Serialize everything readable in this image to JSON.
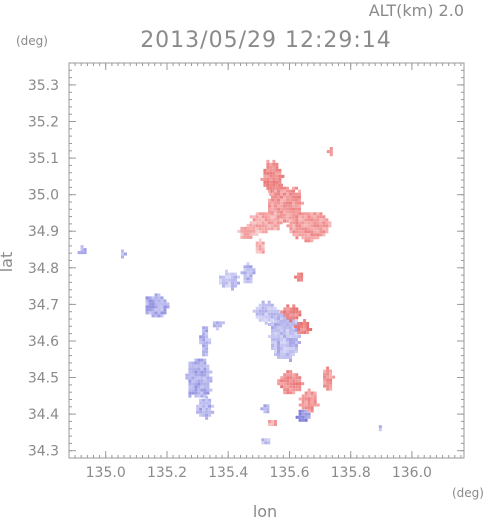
{
  "chart_data": {
    "type": "heatmap",
    "title": "2013/05/29 12:29:14",
    "subtitle": "ALT(km) 2.0",
    "xlabel": "lon",
    "ylabel": "lat",
    "x_unit": "(deg)",
    "y_unit": "(deg)",
    "xlim": [
      134.88,
      136.17
    ],
    "ylim": [
      34.28,
      35.36
    ],
    "x_ticks": [
      135.0,
      135.2,
      135.4,
      135.6,
      135.8,
      136.0
    ],
    "x_tick_labels": [
      "135.0",
      "135.2",
      "135.4",
      "135.6",
      "135.8",
      "136.0"
    ],
    "y_ticks": [
      34.3,
      34.4,
      34.5,
      34.6,
      34.7,
      34.8,
      34.9,
      35.0,
      35.1,
      35.2,
      35.3
    ],
    "y_tick_labels": [
      "34.3",
      "34.4",
      "34.5",
      "34.6",
      "34.7",
      "34.8",
      "34.9",
      "35.0",
      "35.1",
      "35.2",
      "35.3"
    ],
    "colors": {
      "positive": "#f4a3a3",
      "positive_strong": "#e87070",
      "negative": "#b8b8ee",
      "negative_strong": "#7878d8",
      "axis": "#9a9a9a",
      "text": "#8a8a8a"
    },
    "regions": [
      {
        "sign": "positive",
        "strength": 0.7,
        "lon": 135.54,
        "lat": 35.05,
        "rlon": 0.035,
        "rlat": 0.045
      },
      {
        "sign": "positive",
        "strength": 0.6,
        "lon": 135.58,
        "lat": 34.98,
        "rlon": 0.06,
        "rlat": 0.05
      },
      {
        "sign": "positive",
        "strength": 0.55,
        "lon": 135.66,
        "lat": 34.92,
        "rlon": 0.07,
        "rlat": 0.04
      },
      {
        "sign": "positive",
        "strength": 0.45,
        "lon": 135.52,
        "lat": 34.93,
        "rlon": 0.05,
        "rlat": 0.03
      },
      {
        "sign": "positive",
        "strength": 0.35,
        "lon": 135.46,
        "lat": 34.9,
        "rlon": 0.03,
        "rlat": 0.02
      },
      {
        "sign": "positive",
        "strength": 0.4,
        "lon": 135.5,
        "lat": 34.86,
        "rlon": 0.02,
        "rlat": 0.02
      },
      {
        "sign": "positive",
        "strength": 0.5,
        "lon": 135.73,
        "lat": 35.12,
        "rlon": 0.008,
        "rlat": 0.01
      },
      {
        "sign": "negative",
        "strength": 0.35,
        "lon": 135.4,
        "lat": 34.77,
        "rlon": 0.03,
        "rlat": 0.025
      },
      {
        "sign": "negative",
        "strength": 0.45,
        "lon": 135.46,
        "lat": 34.79,
        "rlon": 0.02,
        "rlat": 0.025
      },
      {
        "sign": "negative",
        "strength": 0.55,
        "lon": 135.16,
        "lat": 34.7,
        "rlon": 0.04,
        "rlat": 0.03
      },
      {
        "sign": "negative",
        "strength": 0.5,
        "lon": 135.32,
        "lat": 34.6,
        "rlon": 0.015,
        "rlat": 0.04
      },
      {
        "sign": "negative",
        "strength": 0.55,
        "lon": 135.3,
        "lat": 34.5,
        "rlon": 0.04,
        "rlat": 0.06
      },
      {
        "sign": "negative",
        "strength": 0.5,
        "lon": 135.32,
        "lat": 34.42,
        "rlon": 0.025,
        "rlat": 0.03
      },
      {
        "sign": "negative",
        "strength": 0.4,
        "lon": 135.58,
        "lat": 34.62,
        "rlon": 0.05,
        "rlat": 0.07
      },
      {
        "sign": "negative",
        "strength": 0.35,
        "lon": 135.52,
        "lat": 34.68,
        "rlon": 0.04,
        "rlat": 0.03
      },
      {
        "sign": "negative",
        "strength": 0.4,
        "lon": 135.36,
        "lat": 34.65,
        "rlon": 0.02,
        "rlat": 0.012
      },
      {
        "sign": "negative",
        "strength": 0.5,
        "lon": 134.92,
        "lat": 34.85,
        "rlon": 0.012,
        "rlat": 0.012
      },
      {
        "sign": "negative",
        "strength": 0.45,
        "lon": 135.05,
        "lat": 34.84,
        "rlon": 0.01,
        "rlat": 0.01
      },
      {
        "sign": "negative",
        "strength": 0.4,
        "lon": 135.89,
        "lat": 34.37,
        "rlon": 0.008,
        "rlat": 0.008
      },
      {
        "sign": "negative",
        "strength": 0.4,
        "lon": 135.52,
        "lat": 34.33,
        "rlon": 0.012,
        "rlat": 0.012
      },
      {
        "sign": "positive",
        "strength": 0.8,
        "lon": 135.6,
        "lat": 34.68,
        "rlon": 0.03,
        "rlat": 0.02
      },
      {
        "sign": "positive",
        "strength": 0.8,
        "lon": 135.64,
        "lat": 34.64,
        "rlon": 0.025,
        "rlat": 0.02
      },
      {
        "sign": "positive",
        "strength": 0.7,
        "lon": 135.6,
        "lat": 34.49,
        "rlon": 0.04,
        "rlat": 0.03
      },
      {
        "sign": "positive",
        "strength": 0.6,
        "lon": 135.66,
        "lat": 34.44,
        "rlon": 0.03,
        "rlat": 0.03
      },
      {
        "sign": "negative",
        "strength": 0.8,
        "lon": 135.64,
        "lat": 34.4,
        "rlon": 0.02,
        "rlat": 0.02
      },
      {
        "sign": "positive",
        "strength": 0.6,
        "lon": 135.72,
        "lat": 34.5,
        "rlon": 0.02,
        "rlat": 0.03
      },
      {
        "sign": "positive",
        "strength": 0.7,
        "lon": 135.63,
        "lat": 34.78,
        "rlon": 0.015,
        "rlat": 0.015
      },
      {
        "sign": "negative",
        "strength": 0.6,
        "lon": 135.52,
        "lat": 34.42,
        "rlon": 0.015,
        "rlat": 0.015
      },
      {
        "sign": "positive",
        "strength": 0.5,
        "lon": 135.54,
        "lat": 34.38,
        "rlon": 0.02,
        "rlat": 0.012
      }
    ]
  }
}
